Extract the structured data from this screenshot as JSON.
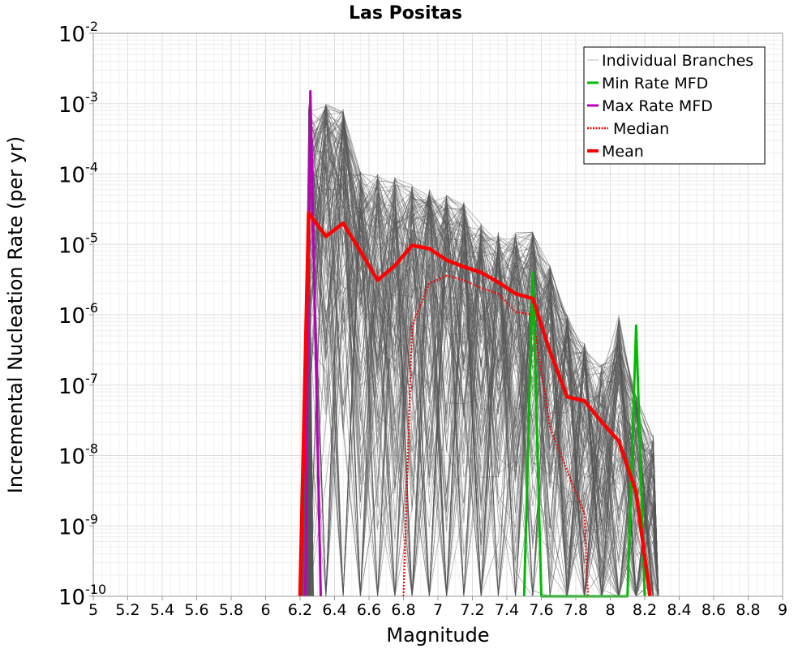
{
  "chart_data": {
    "type": "line",
    "title": "Las Positas",
    "xlabel": "Magnitude",
    "ylabel": "Incremental Nucleation Rate (per yr)",
    "x_ticks": [
      "5",
      "5.2",
      "5.4",
      "5.6",
      "5.8",
      "6",
      "6.2",
      "6.4",
      "6.6",
      "6.8",
      "7",
      "7.2",
      "7.4",
      "7.6",
      "7.8",
      "8",
      "8.2",
      "8.4",
      "8.6",
      "8.8",
      "9"
    ],
    "y_ticks": [
      {
        "base": "10",
        "exp": "-10",
        "value": 1e-10
      },
      {
        "base": "10",
        "exp": "-9",
        "value": 1e-09
      },
      {
        "base": "10",
        "exp": "-8",
        "value": 1e-08
      },
      {
        "base": "10",
        "exp": "-7",
        "value": 1e-07
      },
      {
        "base": "10",
        "exp": "-6",
        "value": 1e-06
      },
      {
        "base": "10",
        "exp": "-5",
        "value": 1e-05
      },
      {
        "base": "10",
        "exp": "-4",
        "value": 0.0001
      },
      {
        "base": "10",
        "exp": "-3",
        "value": 0.001
      },
      {
        "base": "10",
        "exp": "-2",
        "value": 0.01
      }
    ],
    "xlim": [
      5,
      9
    ],
    "ylim": [
      1e-10,
      0.01
    ],
    "y_scale": "log",
    "grid": true,
    "legend_position": "top-right",
    "series": [
      {
        "name": "Individual Branches",
        "color": "#555555",
        "style": "thin",
        "note": "thousands of branch MFDs drawn as a dense band; peak envelope shown",
        "x": [
          6.25,
          6.35,
          6.45,
          6.55,
          6.65,
          6.75,
          6.85,
          6.95,
          7.05,
          7.15,
          7.25,
          7.35,
          7.45,
          7.55,
          7.65,
          7.75,
          7.85,
          7.95,
          8.05,
          8.15,
          8.25
        ],
        "values": [
          0.001,
          0.001,
          0.0009,
          0.00011,
          0.0001,
          9e-05,
          7e-05,
          6e-05,
          5e-05,
          4e-05,
          2e-05,
          1.5e-05,
          1.5e-05,
          1.5e-05,
          5e-06,
          1e-06,
          4e-07,
          2e-07,
          1e-06,
          7e-08,
          2e-08
        ]
      },
      {
        "name": "Min Rate MFD",
        "color": "#00bb00",
        "style": "solid",
        "x": [
          7.5,
          7.55,
          7.6,
          8.1,
          8.15,
          8.2
        ],
        "values": [
          1e-10,
          4e-06,
          1e-10,
          1e-10,
          7e-07,
          1e-10
        ]
      },
      {
        "name": "Max Rate MFD",
        "color": "#bb00bb",
        "style": "solid",
        "x": [
          6.23,
          6.26,
          6.32
        ],
        "values": [
          1e-10,
          0.0015,
          1e-10
        ]
      },
      {
        "name": "Median",
        "color": "#ff0000",
        "style": "dotted",
        "x": [
          6.8,
          6.85,
          6.95,
          7.05,
          7.15,
          7.25,
          7.35,
          7.45,
          7.55,
          7.65,
          7.75,
          7.85,
          7.87
        ],
        "values": [
          1e-10,
          7e-07,
          2.8e-06,
          3.6e-06,
          3.1e-06,
          2.4e-06,
          2e-06,
          1.1e-06,
          1e-06,
          2.5e-08,
          6e-09,
          1.5e-09,
          1e-10
        ]
      },
      {
        "name": "Mean",
        "color": "#ff0000",
        "style": "thick",
        "x": [
          6.2,
          6.25,
          6.35,
          6.45,
          6.55,
          6.65,
          6.75,
          6.85,
          6.95,
          7.05,
          7.15,
          7.25,
          7.35,
          7.45,
          7.55,
          7.65,
          7.75,
          7.85,
          7.95,
          8.05,
          8.15,
          8.23
        ],
        "values": [
          1e-10,
          2.8e-05,
          1.3e-05,
          2e-05,
          8e-06,
          3.1e-06,
          5e-06,
          9.7e-06,
          8.7e-06,
          6e-06,
          4.8e-06,
          4e-06,
          2.9e-06,
          2e-06,
          1.7e-06,
          3e-07,
          6.8e-08,
          6e-08,
          3e-08,
          1.6e-08,
          3e-09,
          1e-10
        ]
      }
    ]
  }
}
